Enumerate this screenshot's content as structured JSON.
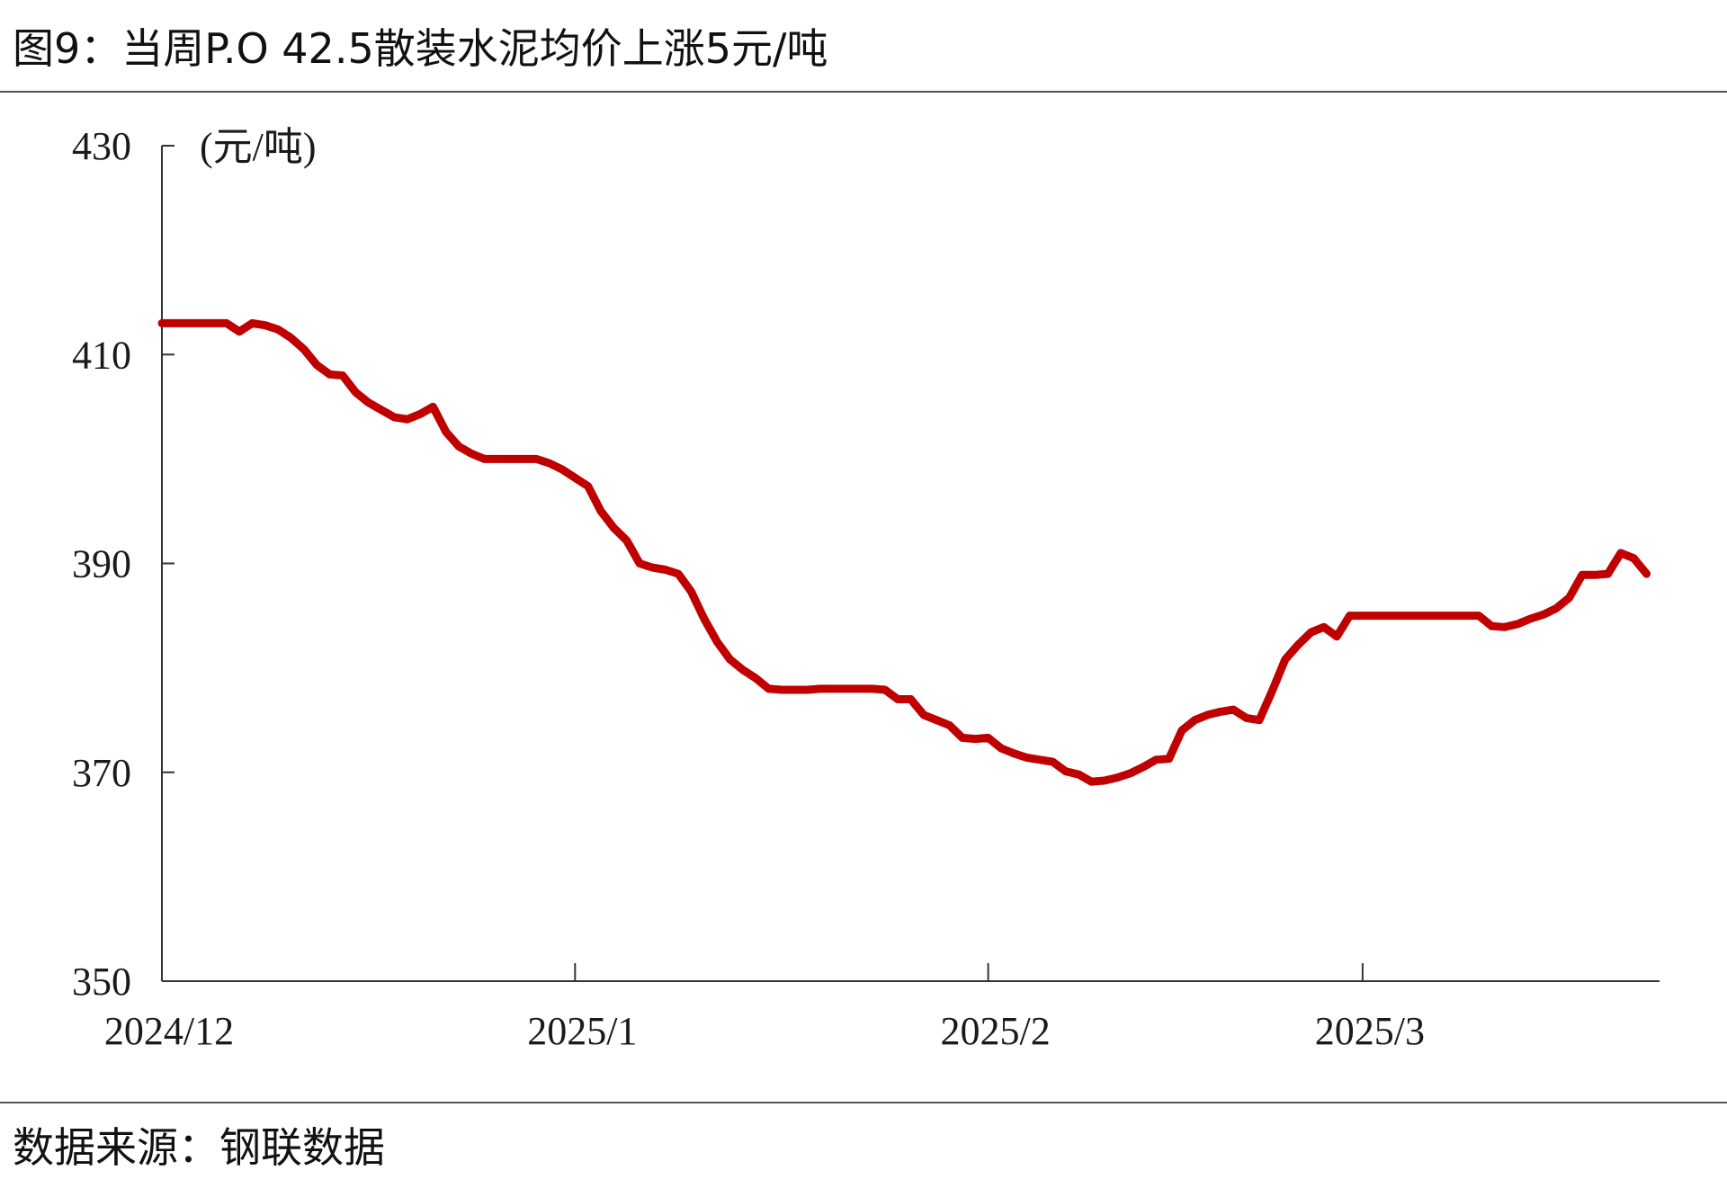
{
  "figure": {
    "title": "图9：当周P.O 42.5散装水泥均价上涨5元/吨",
    "source": "数据来源：钢联数据"
  },
  "colors": {
    "line": "#c00000",
    "axis": "#333333",
    "text": "#1a1a1a"
  },
  "chart_data": {
    "type": "line",
    "title": "图9：当周P.O 42.5散装水泥均价上涨5元/吨",
    "ylabel": "(元/吨)",
    "xlabel": "",
    "ylim": [
      350,
      430
    ],
    "yticks": [
      350,
      370,
      390,
      410,
      430
    ],
    "xlim": [
      "2024-11-30",
      "2025-03-26"
    ],
    "xticks": [
      {
        "date": "2024-11-30",
        "label": "2024/12"
      },
      {
        "date": "2025-01-01",
        "label": "2025/1"
      },
      {
        "date": "2025-02-02",
        "label": "2025/2"
      },
      {
        "date": "2025-03-03",
        "label": "2025/3"
      }
    ],
    "grid": false,
    "legend": "none",
    "series": [
      {
        "x": [
          "2024-11-30",
          "2024-12-01",
          "2024-12-02",
          "2024-12-03",
          "2024-12-04",
          "2024-12-05",
          "2024-12-06",
          "2024-12-07",
          "2024-12-08",
          "2024-12-09",
          "2024-12-10",
          "2024-12-11",
          "2024-12-12",
          "2024-12-13",
          "2024-12-14",
          "2024-12-15",
          "2024-12-16",
          "2024-12-17",
          "2024-12-18",
          "2024-12-19",
          "2024-12-20",
          "2024-12-21",
          "2024-12-22",
          "2024-12-23",
          "2024-12-24",
          "2024-12-25",
          "2024-12-26",
          "2024-12-27",
          "2024-12-28",
          "2024-12-29",
          "2024-12-30",
          "2024-12-31",
          "2025-01-01",
          "2025-01-02",
          "2025-01-03",
          "2025-01-04",
          "2025-01-05",
          "2025-01-06",
          "2025-01-07",
          "2025-01-08",
          "2025-01-09",
          "2025-01-10",
          "2025-01-11",
          "2025-01-12",
          "2025-01-13",
          "2025-01-14",
          "2025-01-15",
          "2025-01-16",
          "2025-01-17",
          "2025-01-18",
          "2025-01-19",
          "2025-01-20",
          "2025-01-21",
          "2025-01-22",
          "2025-01-23",
          "2025-01-24",
          "2025-01-25",
          "2025-01-26",
          "2025-01-27",
          "2025-01-28",
          "2025-01-29",
          "2025-01-30",
          "2025-01-31",
          "2025-02-01",
          "2025-02-02",
          "2025-02-03",
          "2025-02-04",
          "2025-02-05",
          "2025-02-06",
          "2025-02-07",
          "2025-02-08",
          "2025-02-09",
          "2025-02-10",
          "2025-02-11",
          "2025-02-12",
          "2025-02-13",
          "2025-02-14",
          "2025-02-15",
          "2025-02-16",
          "2025-02-17",
          "2025-02-18",
          "2025-02-19",
          "2025-02-20",
          "2025-02-21",
          "2025-02-22",
          "2025-02-23",
          "2025-02-24",
          "2025-02-25",
          "2025-02-26",
          "2025-02-27",
          "2025-02-28",
          "2025-03-01",
          "2025-03-02",
          "2025-03-03",
          "2025-03-04",
          "2025-03-05",
          "2025-03-06",
          "2025-03-07",
          "2025-03-08",
          "2025-03-09",
          "2025-03-10",
          "2025-03-11",
          "2025-03-12",
          "2025-03-13",
          "2025-03-14",
          "2025-03-15",
          "2025-03-16",
          "2025-03-17",
          "2025-03-18",
          "2025-03-19",
          "2025-03-20",
          "2025-03-21",
          "2025-03-22",
          "2025-03-23",
          "2025-03-24",
          "2025-03-25"
        ],
        "y": [
          413.0,
          413.0,
          413.0,
          413.0,
          413.0,
          413.0,
          412.2,
          413.0,
          412.8,
          412.4,
          411.6,
          410.5,
          409.0,
          408.1,
          408.0,
          406.4,
          405.4,
          404.7,
          404.0,
          403.8,
          404.3,
          405.0,
          402.6,
          401.2,
          400.5,
          400.0,
          400.0,
          400.0,
          400.0,
          400.0,
          399.6,
          399.0,
          398.2,
          397.4,
          395.0,
          393.4,
          392.2,
          390.0,
          389.6,
          389.4,
          389.0,
          387.3,
          384.7,
          382.5,
          380.8,
          379.8,
          379.0,
          378.0,
          377.9,
          377.9,
          377.9,
          378.0,
          378.0,
          378.0,
          378.0,
          378.0,
          377.9,
          377.0,
          377.0,
          375.5,
          375.0,
          374.5,
          373.3,
          373.2,
          373.3,
          372.3,
          371.8,
          371.4,
          371.2,
          371.0,
          370.1,
          369.8,
          369.1,
          369.2,
          369.5,
          369.9,
          370.5,
          371.2,
          371.3,
          374.0,
          375.0,
          375.5,
          375.8,
          376.0,
          375.2,
          375.0,
          377.8,
          380.8,
          382.2,
          383.4,
          383.9,
          383.0,
          385.0,
          385.0,
          385.0,
          385.0,
          385.0,
          385.0,
          385.0,
          385.0,
          385.0,
          385.0,
          385.0,
          384.0,
          383.9,
          384.2,
          384.7,
          385.1,
          385.7,
          386.7,
          388.9,
          388.9,
          389.0,
          391.0,
          390.5,
          389.0
        ]
      }
    ]
  }
}
